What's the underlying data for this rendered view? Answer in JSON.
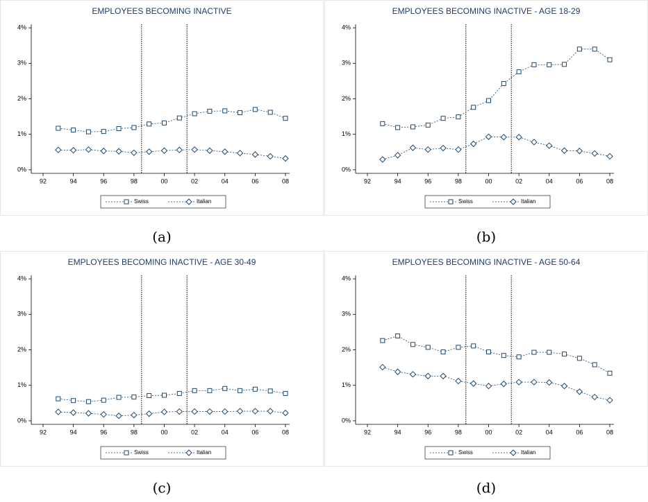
{
  "chart_data": [
    {
      "type": "line",
      "title": "EMPLOYEES BECOMING INACTIVE",
      "caption": "(a)",
      "categories": [
        "92",
        null,
        "94",
        null,
        "96",
        null,
        "98",
        null,
        "00",
        null,
        "02",
        null,
        "04",
        null,
        "06",
        null,
        "08"
      ],
      "series": [
        {
          "name": "Swiss",
          "color": "#1a476f",
          "marker": "square",
          "values": [
            null,
            1.17,
            1.12,
            1.07,
            1.08,
            1.16,
            1.19,
            1.29,
            1.32,
            1.46,
            1.58,
            1.65,
            1.66,
            1.61,
            1.7,
            1.62,
            1.45
          ]
        },
        {
          "name": "Italian",
          "color": "#1a476f",
          "marker": "diamond",
          "values": [
            null,
            0.56,
            0.55,
            0.57,
            0.53,
            0.52,
            0.48,
            0.51,
            0.54,
            0.56,
            0.57,
            0.54,
            0.51,
            0.47,
            0.43,
            0.38,
            0.32
          ]
        }
      ],
      "vlines": [
        6.5,
        9.5
      ],
      "ylim": [
        -0.1,
        4.1
      ],
      "yticks": [
        {
          "value": 0,
          "label": "0%"
        },
        {
          "value": 1,
          "label": "1%"
        },
        {
          "value": 2,
          "label": "2%"
        },
        {
          "value": 3,
          "label": "3%"
        },
        {
          "value": 4,
          "label": "4%"
        }
      ],
      "legend": "bottom"
    },
    {
      "type": "line",
      "title": "EMPLOYEES BECOMING INACTIVE - AGE 18-29",
      "caption": "(b)",
      "categories": [
        "92",
        null,
        "94",
        null,
        "96",
        null,
        "98",
        null,
        "00",
        null,
        "02",
        null,
        "04",
        null,
        "06",
        null,
        "08"
      ],
      "series": [
        {
          "name": "Swiss",
          "color": "#1a476f",
          "marker": "square",
          "values": [
            null,
            1.3,
            1.19,
            1.21,
            1.26,
            1.45,
            1.49,
            1.76,
            1.95,
            2.43,
            2.76,
            2.96,
            2.96,
            2.97,
            3.4,
            3.4,
            3.1
          ]
        },
        {
          "name": "Italian",
          "color": "#1a476f",
          "marker": "diamond",
          "values": [
            null,
            0.29,
            0.41,
            0.62,
            0.57,
            0.61,
            0.57,
            0.73,
            0.93,
            0.92,
            0.92,
            0.78,
            0.68,
            0.54,
            0.53,
            0.46,
            0.38
          ]
        }
      ],
      "vlines": [
        6.5,
        9.5
      ],
      "ylim": [
        -0.1,
        4.1
      ],
      "yticks": [
        {
          "value": 0,
          "label": "0%"
        },
        {
          "value": 1,
          "label": "1%"
        },
        {
          "value": 2,
          "label": "2%"
        },
        {
          "value": 3,
          "label": "3%"
        },
        {
          "value": 4,
          "label": "4%"
        }
      ],
      "legend": "bottom"
    },
    {
      "type": "line",
      "title": "EMPLOYEES BECOMING INACTIVE - AGE 30-49",
      "caption": "(c)",
      "categories": [
        "92",
        null,
        "94",
        null,
        "96",
        null,
        "98",
        null,
        "00",
        null,
        "02",
        null,
        "04",
        null,
        "06",
        null,
        "08"
      ],
      "series": [
        {
          "name": "Swiss",
          "color": "#1a476f",
          "marker": "square",
          "values": [
            null,
            0.62,
            0.57,
            0.54,
            0.58,
            0.66,
            0.67,
            0.71,
            0.72,
            0.77,
            0.85,
            0.85,
            0.91,
            0.85,
            0.89,
            0.84,
            0.77
          ]
        },
        {
          "name": "Italian",
          "color": "#1a476f",
          "marker": "diamond",
          "values": [
            null,
            0.25,
            0.23,
            0.21,
            0.18,
            0.14,
            0.16,
            0.2,
            0.25,
            0.26,
            0.26,
            0.26,
            0.26,
            0.27,
            0.27,
            0.27,
            0.22
          ]
        }
      ],
      "vlines": [
        6.5,
        9.5
      ],
      "ylim": [
        -0.1,
        4.1
      ],
      "yticks": [
        {
          "value": 0,
          "label": "0%"
        },
        {
          "value": 1,
          "label": "1%"
        },
        {
          "value": 2,
          "label": "2%"
        },
        {
          "value": 3,
          "label": "3%"
        },
        {
          "value": 4,
          "label": "4%"
        }
      ],
      "legend": "bottom"
    },
    {
      "type": "line",
      "title": "EMPLOYEES BECOMING INACTIVE - AGE 50-64",
      "caption": "(d)",
      "categories": [
        "92",
        null,
        "94",
        null,
        "96",
        null,
        "98",
        null,
        "00",
        null,
        "02",
        null,
        "04",
        null,
        "06",
        null,
        "08"
      ],
      "series": [
        {
          "name": "Swiss",
          "color": "#1a476f",
          "marker": "square",
          "values": [
            null,
            2.26,
            2.39,
            2.15,
            2.07,
            1.94,
            2.07,
            2.11,
            1.94,
            1.84,
            1.8,
            1.93,
            1.93,
            1.88,
            1.76,
            1.58,
            1.34
          ]
        },
        {
          "name": "Italian",
          "color": "#1a476f",
          "marker": "diamond",
          "values": [
            null,
            1.51,
            1.38,
            1.31,
            1.26,
            1.26,
            1.12,
            1.05,
            0.98,
            1.04,
            1.09,
            1.09,
            1.08,
            0.98,
            0.82,
            0.67,
            0.58
          ]
        }
      ],
      "vlines": [
        6.5,
        9.5
      ],
      "ylim": [
        -0.1,
        4.1
      ],
      "yticks": [
        {
          "value": 0,
          "label": "0%"
        },
        {
          "value": 1,
          "label": "1%"
        },
        {
          "value": 2,
          "label": "2%"
        },
        {
          "value": 3,
          "label": "3%"
        },
        {
          "value": 4,
          "label": "4%"
        }
      ],
      "legend": "bottom"
    }
  ]
}
